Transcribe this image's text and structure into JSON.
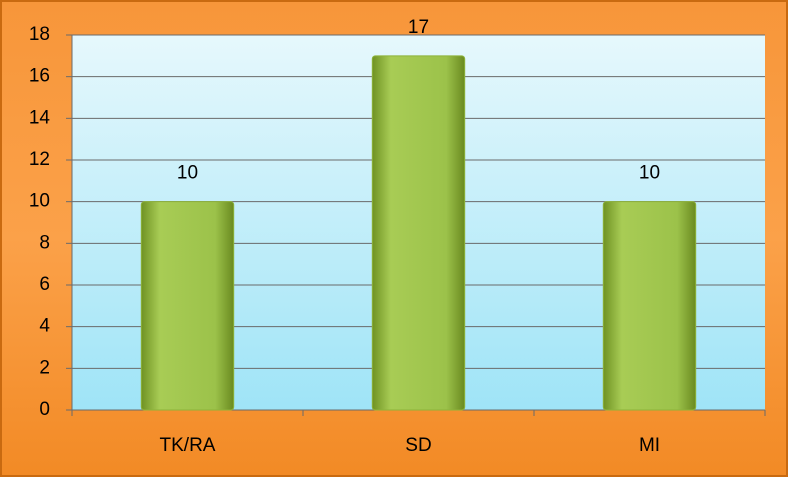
{
  "chart_data": {
    "type": "bar",
    "categories": [
      "TK/RA",
      "SD",
      "MI"
    ],
    "values": [
      10,
      17,
      10
    ],
    "color": "#8db33a",
    "ylim": [
      0,
      18
    ],
    "yticks": [
      0,
      2,
      4,
      6,
      8,
      10,
      12,
      14,
      16,
      18
    ],
    "grid": true
  }
}
